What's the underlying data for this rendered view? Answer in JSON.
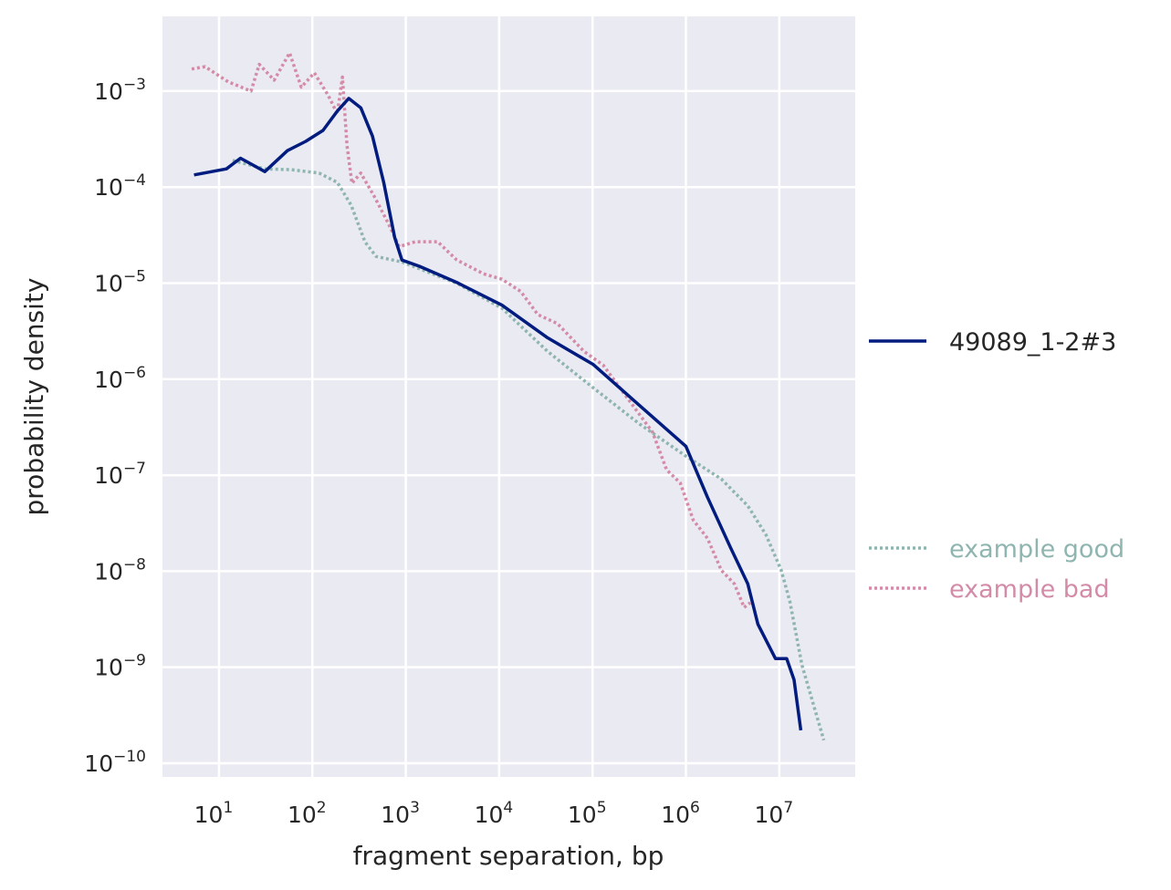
{
  "chart_data": {
    "type": "line",
    "title": "",
    "xlabel": "fragment separation, bp",
    "ylabel": "probability density",
    "xscale": "log",
    "yscale": "log",
    "xlim": [
      2.48,
      65000000.0
    ],
    "ylim": [
      7.2e-11,
      0.006
    ],
    "grid": true,
    "background_color": "#eaeaf2",
    "grid_color": "#ffffff",
    "xticks": [
      {
        "value": 10,
        "base": "10",
        "exp": "1"
      },
      {
        "value": 100,
        "base": "10",
        "exp": "2"
      },
      {
        "value": 1000,
        "base": "10",
        "exp": "3"
      },
      {
        "value": 10000,
        "base": "10",
        "exp": "4"
      },
      {
        "value": 100000,
        "base": "10",
        "exp": "5"
      },
      {
        "value": 1000000,
        "base": "10",
        "exp": "6"
      },
      {
        "value": 10000000,
        "base": "10",
        "exp": "7"
      }
    ],
    "yticks": [
      {
        "value": 0.001,
        "base": "10",
        "exp": "−3"
      },
      {
        "value": 0.0001,
        "base": "10",
        "exp": "−4"
      },
      {
        "value": 1e-05,
        "base": "10",
        "exp": "−5"
      },
      {
        "value": 1e-06,
        "base": "10",
        "exp": "−6"
      },
      {
        "value": 1e-07,
        "base": "10",
        "exp": "−7"
      },
      {
        "value": 1e-08,
        "base": "10",
        "exp": "−8"
      },
      {
        "value": 1e-09,
        "base": "10",
        "exp": "−9"
      },
      {
        "value": 1e-10,
        "base": "10",
        "exp": "−10"
      }
    ],
    "legend_placement": "outside-right",
    "series": [
      {
        "name": "49089_1-2#3",
        "color": "#001c7f",
        "style": "solid",
        "x": [
          5.4,
          12,
          17,
          31,
          54,
          85,
          130,
          185,
          245,
          330,
          440,
          580,
          760,
          910,
          1400,
          3500,
          10700,
          33000,
          102000,
          320000,
          1000000,
          1700000,
          3000000,
          4600000,
          5900000,
          9100000,
          12000000,
          14400000,
          17000000
        ],
        "y": [
          0.000134,
          0.000155,
          0.0002,
          0.000145,
          0.00024,
          0.0003,
          0.00039,
          0.00062,
          0.00084,
          0.00067,
          0.00034,
          0.000112,
          3e-05,
          1.74e-05,
          1.5e-05,
          1.02e-05,
          5.9e-06,
          2.7e-06,
          1.42e-06,
          5.3e-07,
          2e-07,
          5.9e-08,
          1.77e-08,
          7.4e-09,
          2.8e-09,
          1.23e-09,
          1.23e-09,
          7.4e-10,
          2.2e-10
        ]
      },
      {
        "name": "example good",
        "color": "#8fb5b0",
        "style": "dotted",
        "x": [
          14,
          31,
          60,
          118,
          185,
          260,
          365,
          480,
          910,
          3500,
          10700,
          33000,
          102000,
          320000,
          1000000,
          2400000,
          4600000,
          7200000,
          10500000,
          13000000,
          17500000,
          30000000
        ],
        "y": [
          0.00019,
          0.000155,
          0.000152,
          0.00014,
          0.000112,
          6.5e-05,
          2.7e-05,
          1.9e-05,
          1.66e-05,
          1e-05,
          5.5e-06,
          1.95e-06,
          8.1e-07,
          3.4e-07,
          1.58e-07,
          9.1e-08,
          4.8e-08,
          2.4e-08,
          1.02e-08,
          4.8e-09,
          1.05e-09,
          1.74e-10
        ]
      },
      {
        "name": "example bad",
        "color": "#d38ba8",
        "style": "dotted",
        "x": [
          5.1,
          7.1,
          12.5,
          22,
          27,
          39,
          57,
          76,
          105,
          148,
          185,
          210,
          235,
          265,
          330,
          460,
          650,
          850,
          1260,
          2200,
          3500,
          6800,
          10700,
          17000,
          26000,
          42000,
          81000,
          130000,
          250000,
          440000,
          620000,
          870000,
          1200000,
          1700000,
          2400000,
          3300000,
          4200000,
          4900000
        ],
        "y": [
          0.0017,
          0.0018,
          0.00125,
          0.001,
          0.0019,
          0.0013,
          0.0025,
          0.0011,
          0.00155,
          0.0009,
          0.00058,
          0.0014,
          0.00027,
          0.00011,
          0.00014,
          8e-05,
          4.2e-05,
          2.4e-05,
          2.7e-05,
          2.7e-05,
          1.75e-05,
          1.25e-05,
          1.1e-05,
          8.2e-06,
          4.7e-06,
          3.8e-06,
          1.95e-06,
          1.4e-06,
          5.9e-07,
          2.8e-07,
          1.14e-07,
          8.3e-08,
          3.4e-08,
          2.2e-08,
          1.02e-08,
          7.4e-09,
          4.2e-09,
          4.7e-09
        ]
      }
    ]
  }
}
